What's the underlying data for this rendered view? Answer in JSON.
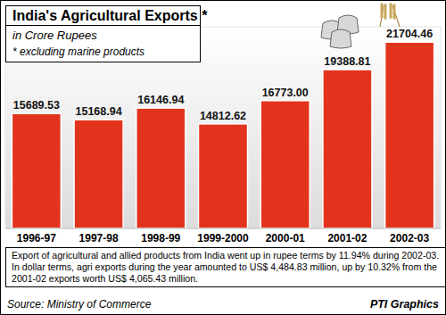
{
  "chart_data": {
    "type": "bar",
    "title": "India's Agricultural Exports *",
    "subtitle": "in Crore Rupees",
    "annotations": [
      "* excluding marine products",
      "Export of agricultural and allied products from India went up in rupee terms by 11.94% during 2002-03. In dollar terms, agri exports during the year amounted to US$ 4,484.83 million, up by 10.32% from the 2001-02 exports worth US$ 4,065.43 million.",
      "Source: Ministry of Commerce",
      "PTI Graphics"
    ],
    "categories": [
      "1996-97",
      "1997-98",
      "1998-99",
      "1999-2000",
      "2000-01",
      "2001-02",
      "2002-03"
    ],
    "values": [
      15689.53,
      15168.94,
      16146.94,
      14812.62,
      16773.0,
      19388.81,
      21704.46
    ],
    "value_labels": [
      "15689.53",
      "15168.94",
      "16146.94",
      "14812.62",
      "16773.00",
      "19388.81",
      "21704.46"
    ],
    "color": "#e2341d",
    "ylim": [
      6000,
      23000
    ],
    "yticks": [],
    "grid": false,
    "data_labels": true,
    "tick_labels": "x"
  }
}
